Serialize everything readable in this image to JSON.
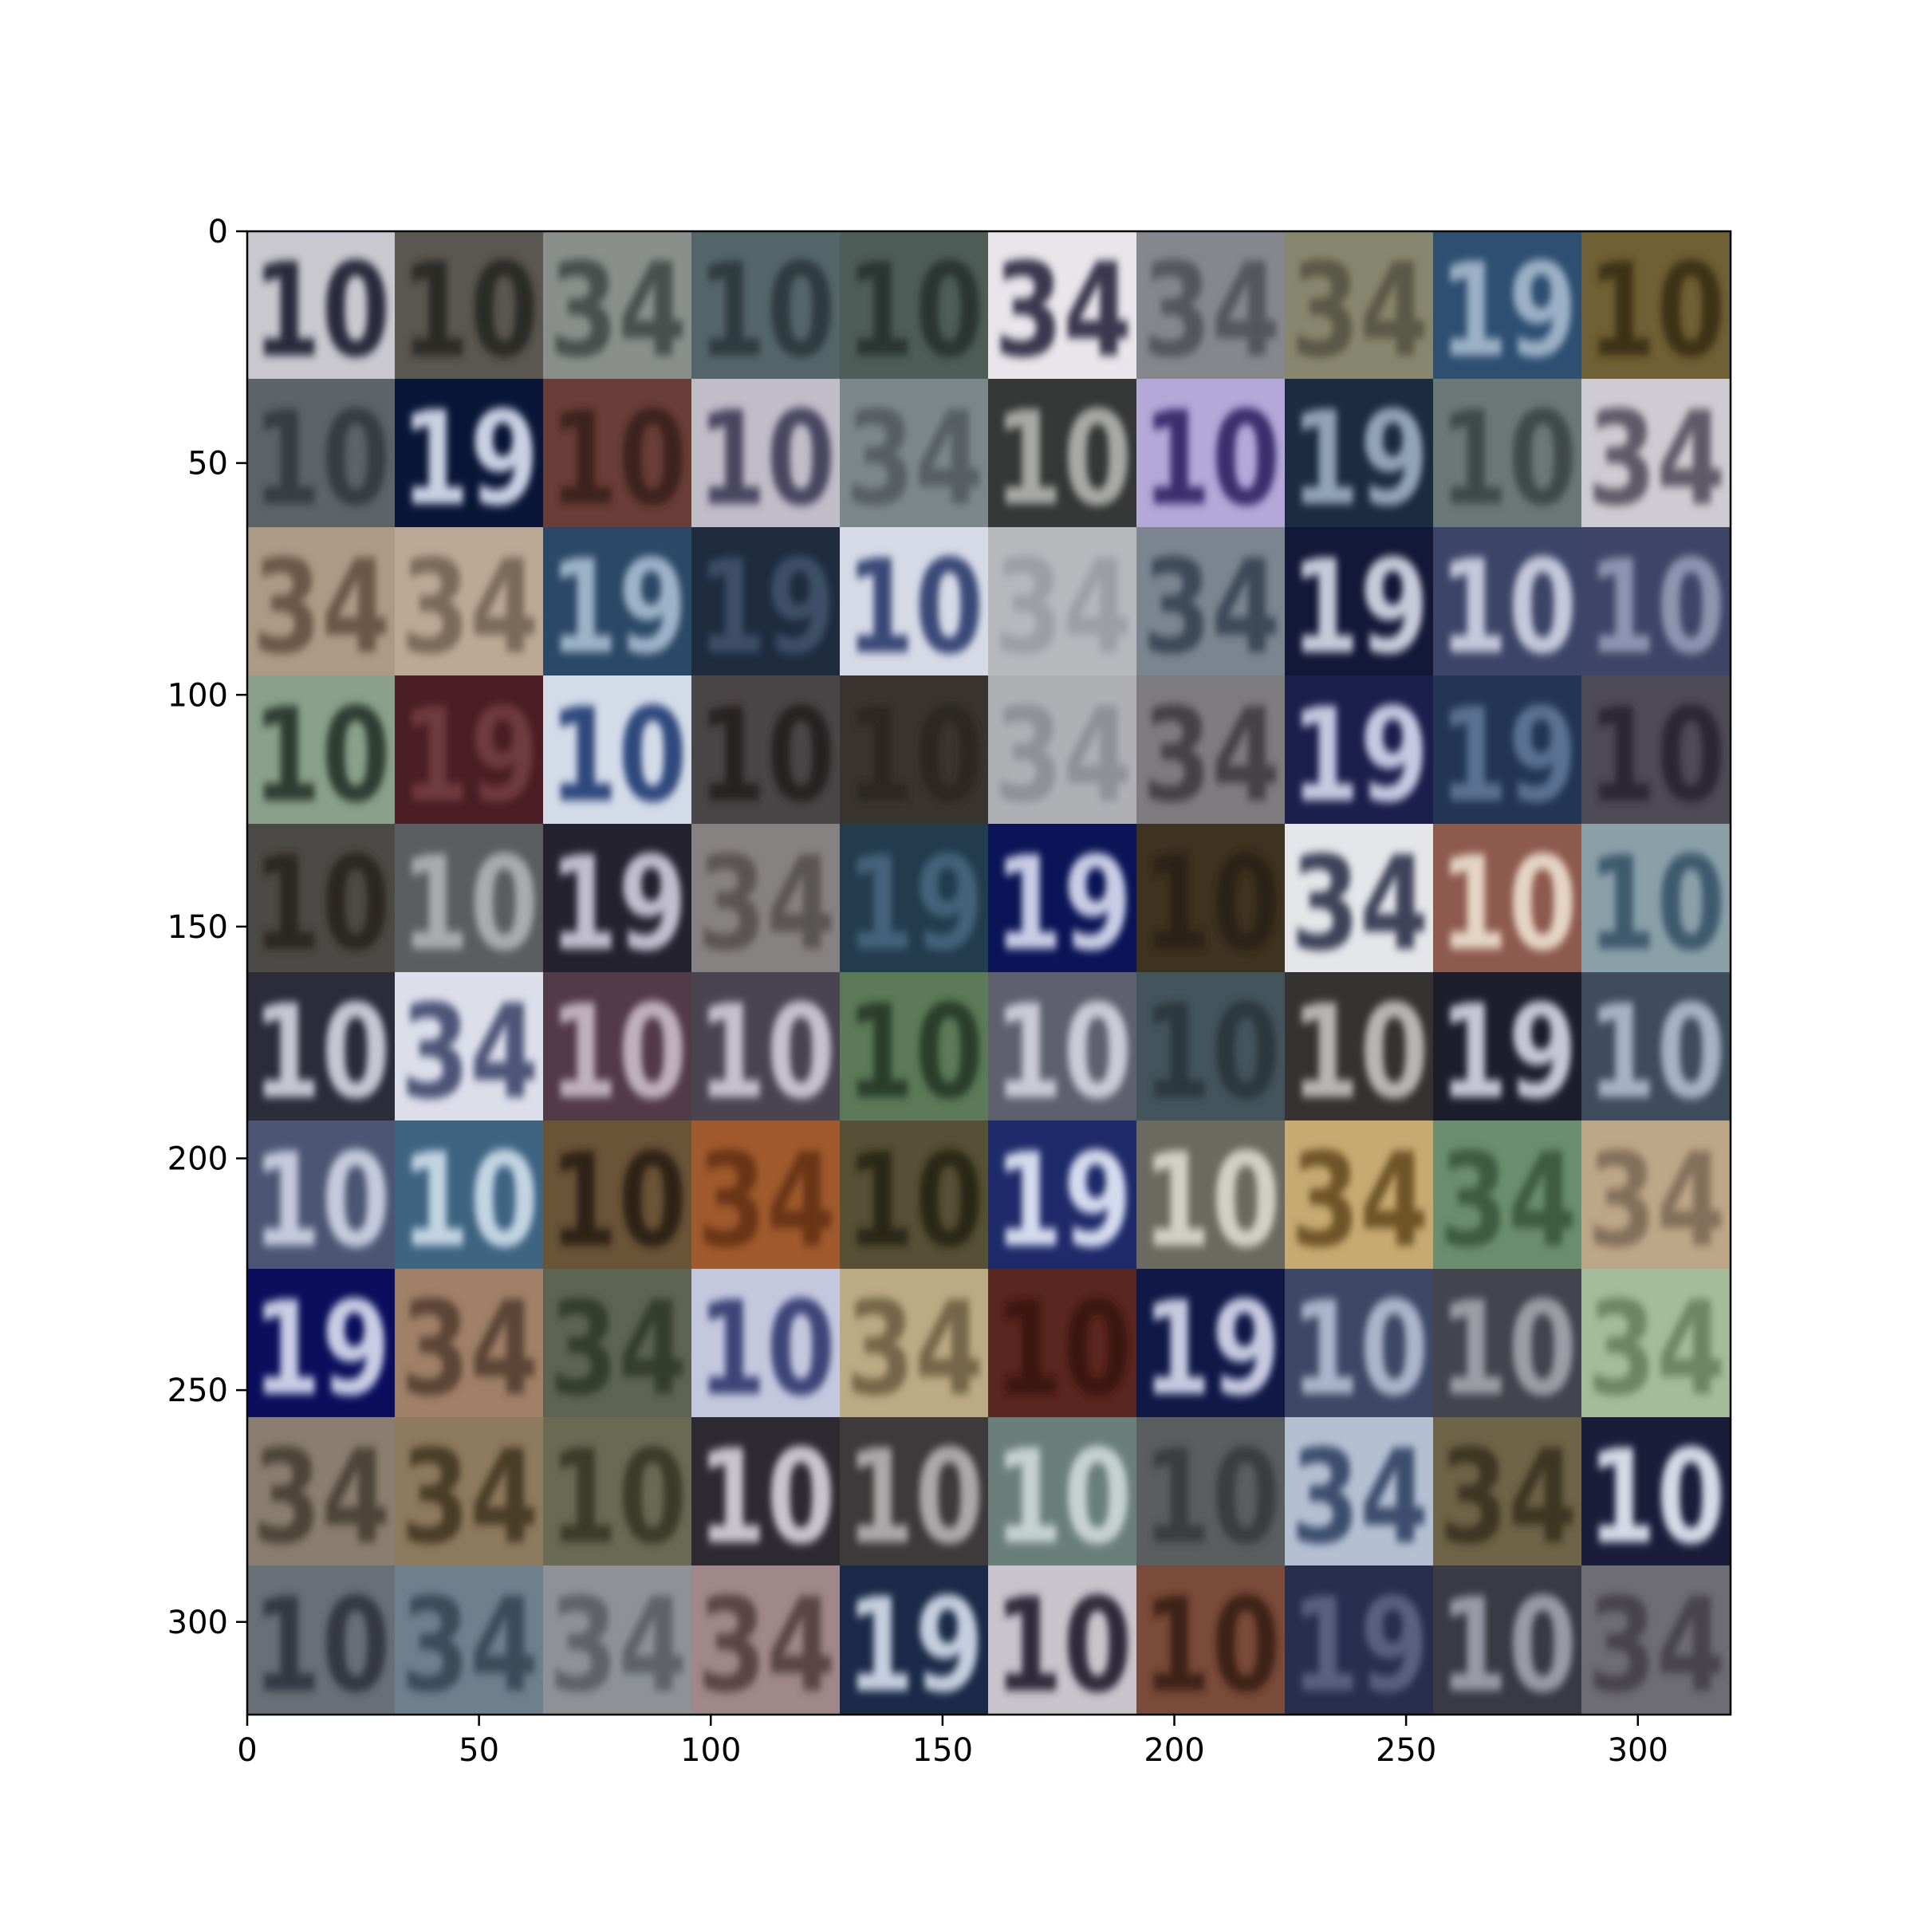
{
  "chart_data": {
    "type": "heatmap",
    "title": "",
    "xlabel": "",
    "ylabel": "",
    "xlim": [
      0,
      320
    ],
    "ylim": [
      320,
      0
    ],
    "x_ticks": [
      0,
      50,
      100,
      150,
      200,
      250,
      300
    ],
    "y_ticks": [
      0,
      50,
      100,
      150,
      200,
      250,
      300
    ],
    "x_tick_labels": [
      "0",
      "50",
      "100",
      "150",
      "200",
      "250",
      "300"
    ],
    "y_tick_labels": [
      "0",
      "50",
      "100",
      "150",
      "200",
      "250",
      "300"
    ],
    "grid": false,
    "tile_grid": {
      "rows": 10,
      "cols": 10,
      "tile_size": 32
    },
    "tiles": [
      [
        {
          "digits": "10",
          "bg": "#c9c8cf",
          "fg": "#2a2a3e"
        },
        {
          "digits": "10",
          "bg": "#5a5650",
          "fg": "#2c2a26"
        },
        {
          "digits": "34",
          "bg": "#8a8f8c",
          "fg": "#4a4f4e"
        },
        {
          "digits": "10",
          "bg": "#55666a",
          "fg": "#2f3b40"
        },
        {
          "digits": "10",
          "bg": "#4f5d58",
          "fg": "#2c3532"
        },
        {
          "digits": "34",
          "bg": "#e8e6ea",
          "fg": "#3a3850"
        },
        {
          "digits": "34",
          "bg": "#86878d",
          "fg": "#55565c"
        },
        {
          "digits": "34",
          "bg": "#87866e",
          "fg": "#5a5946"
        },
        {
          "digits": "19",
          "bg": "#2e4f72",
          "fg": "#9bb0c6"
        },
        {
          "digits": "10",
          "bg": "#6f6035",
          "fg": "#3c3319"
        }
      ],
      [
        {
          "digits": "10",
          "bg": "#5c6468",
          "fg": "#363c40"
        },
        {
          "digits": "19",
          "bg": "#0a1638",
          "fg": "#c8cfe2"
        },
        {
          "digits": "10",
          "bg": "#6a3e38",
          "fg": "#3c221e"
        },
        {
          "digits": "10",
          "bg": "#c0bcc8",
          "fg": "#4a4660"
        },
        {
          "digits": "34",
          "bg": "#7c878a",
          "fg": "#565f62"
        },
        {
          "digits": "10",
          "bg": "#363838",
          "fg": "#a7a8a6"
        },
        {
          "digits": "10",
          "bg": "#b3a8d8",
          "fg": "#3a2f6e"
        },
        {
          "digits": "19",
          "bg": "#1c2c40",
          "fg": "#90a3b8"
        },
        {
          "digits": "10",
          "bg": "#6c7878",
          "fg": "#3f4848"
        },
        {
          "digits": "34",
          "bg": "#cfcbd2",
          "fg": "#5e5a68"
        }
      ],
      [
        {
          "digits": "34",
          "bg": "#ad9a86",
          "fg": "#6a5846"
        },
        {
          "digits": "34",
          "bg": "#bba995",
          "fg": "#7a6a58"
        },
        {
          "digits": "19",
          "bg": "#2b4866",
          "fg": "#9cb2c8"
        },
        {
          "digits": "19",
          "bg": "#1e2c3e",
          "fg": "#3e5068"
        },
        {
          "digits": "10",
          "bg": "#d6dae6",
          "fg": "#3a4a78"
        },
        {
          "digits": "34",
          "bg": "#b6b8bc",
          "fg": "#9c9ea4"
        },
        {
          "digits": "34",
          "bg": "#7b8590",
          "fg": "#3e4a58"
        },
        {
          "digits": "19",
          "bg": "#141838",
          "fg": "#c6cad8"
        },
        {
          "digits": "10",
          "bg": "#3c4468",
          "fg": "#c4c8da"
        },
        {
          "digits": "10",
          "bg": "#3e4566",
          "fg": "#8e94b0"
        }
      ],
      [
        {
          "digits": "10",
          "bg": "#8aa08a",
          "fg": "#2f3e30"
        },
        {
          "digits": "19",
          "bg": "#4a1e24",
          "fg": "#6e3a40"
        },
        {
          "digits": "10",
          "bg": "#d4dbe8",
          "fg": "#2f4a7e"
        },
        {
          "digits": "10",
          "bg": "#4a4648",
          "fg": "#262224"
        },
        {
          "digits": "10",
          "bg": "#3a3430",
          "fg": "#2c2622"
        },
        {
          "digits": "34",
          "bg": "#aeb0b4",
          "fg": "#8e9096"
        },
        {
          "digits": "34",
          "bg": "#7e7c7e",
          "fg": "#444244"
        },
        {
          "digits": "19",
          "bg": "#1c1e4c",
          "fg": "#c4c8e0"
        },
        {
          "digits": "19",
          "bg": "#223654",
          "fg": "#5a7292"
        },
        {
          "digits": "10",
          "bg": "#4e4a56",
          "fg": "#2a2632"
        }
      ],
      [
        {
          "digits": "10",
          "bg": "#4c4a46",
          "fg": "#2a2824"
        },
        {
          "digits": "10",
          "bg": "#5a5e60",
          "fg": "#a8acae"
        },
        {
          "digits": "19",
          "bg": "#24222e",
          "fg": "#c0bece"
        },
        {
          "digits": "34",
          "bg": "#878282",
          "fg": "#5a5454"
        },
        {
          "digits": "19",
          "bg": "#223c4e",
          "fg": "#44627a"
        },
        {
          "digits": "19",
          "bg": "#0a1456",
          "fg": "#c8cce4"
        },
        {
          "digits": "10",
          "bg": "#3e3220",
          "fg": "#2a2014"
        },
        {
          "digits": "34",
          "bg": "#e4e6ea",
          "fg": "#40425a"
        },
        {
          "digits": "10",
          "bg": "#8e5a4e",
          "fg": "#e4d4c4"
        },
        {
          "digits": "10",
          "bg": "#8aa0a8",
          "fg": "#3e5a6e"
        }
      ],
      [
        {
          "digits": "10",
          "bg": "#2a2c3a",
          "fg": "#c4c6d2"
        },
        {
          "digits": "34",
          "bg": "#dcdeea",
          "fg": "#4e5478"
        },
        {
          "digits": "10",
          "bg": "#523a48",
          "fg": "#c0b0bc"
        },
        {
          "digits": "10",
          "bg": "#4a4450",
          "fg": "#c6c0cc"
        },
        {
          "digits": "10",
          "bg": "#5c7a58",
          "fg": "#2c3e2a"
        },
        {
          "digits": "10",
          "bg": "#5e606e",
          "fg": "#cacbd6"
        },
        {
          "digits": "10",
          "bg": "#44545c",
          "fg": "#2c383e"
        },
        {
          "digits": "10",
          "bg": "#363232",
          "fg": "#b8b4b4"
        },
        {
          "digits": "19",
          "bg": "#1c1e2c",
          "fg": "#c4c6d4"
        },
        {
          "digits": "10",
          "bg": "#3e4c5e",
          "fg": "#a6b2c2"
        }
      ],
      [
        {
          "digits": "10",
          "bg": "#4c5674",
          "fg": "#c4cadc"
        },
        {
          "digits": "10",
          "bg": "#3e6482",
          "fg": "#c2d4e2"
        },
        {
          "digits": "10",
          "bg": "#6a5438",
          "fg": "#2e2214"
        },
        {
          "digits": "34",
          "bg": "#a05a2e",
          "fg": "#6a3414"
        },
        {
          "digits": "10",
          "bg": "#565036",
          "fg": "#2a2616"
        },
        {
          "digits": "19",
          "bg": "#1e2a6a",
          "fg": "#d4daee"
        },
        {
          "digits": "10",
          "bg": "#6a6a60",
          "fg": "#d0d0c6"
        },
        {
          "digits": "34",
          "bg": "#c6aa72",
          "fg": "#6e5428"
        },
        {
          "digits": "34",
          "bg": "#6a8e6e",
          "fg": "#3c5c40"
        },
        {
          "digits": "34",
          "bg": "#bea688",
          "fg": "#84705a"
        }
      ],
      [
        {
          "digits": "19",
          "bg": "#0a0e5c",
          "fg": "#c8cce4"
        },
        {
          "digits": "34",
          "bg": "#a08068",
          "fg": "#5c4434"
        },
        {
          "digits": "34",
          "bg": "#5e6452",
          "fg": "#363c2c"
        },
        {
          "digits": "10",
          "bg": "#c4c8de",
          "fg": "#3c4478"
        },
        {
          "digits": "34",
          "bg": "#bcaa84",
          "fg": "#76664a"
        },
        {
          "digits": "10",
          "bg": "#5a2620",
          "fg": "#3a1610"
        },
        {
          "digits": "19",
          "bg": "#101848",
          "fg": "#c6cae0"
        },
        {
          "digits": "10",
          "bg": "#3c4866",
          "fg": "#aab4ca"
        },
        {
          "digits": "10",
          "bg": "#44444e",
          "fg": "#9c9ca6"
        },
        {
          "digits": "34",
          "bg": "#a4bc9a",
          "fg": "#6c8664"
        }
      ],
      [
        {
          "digits": "34",
          "bg": "#8a7e70",
          "fg": "#4e4438"
        },
        {
          "digits": "34",
          "bg": "#8e7a5e",
          "fg": "#4a3c28"
        },
        {
          "digits": "10",
          "bg": "#6a6a54",
          "fg": "#3a3a28"
        },
        {
          "digits": "10",
          "bg": "#2e2a32",
          "fg": "#c8c4cc"
        },
        {
          "digits": "10",
          "bg": "#3c3a3a",
          "fg": "#aaa8a8"
        },
        {
          "digits": "10",
          "bg": "#6a7e7a",
          "fg": "#c6d2d0"
        },
        {
          "digits": "10",
          "bg": "#5a5e5e",
          "fg": "#3a3e3e"
        },
        {
          "digits": "34",
          "bg": "#b4c0d2",
          "fg": "#3e4e6e"
        },
        {
          "digits": "34",
          "bg": "#6e6448",
          "fg": "#3e3622"
        },
        {
          "digits": "10",
          "bg": "#1a1c3a",
          "fg": "#d6d8e6"
        }
      ],
      [
        {
          "digits": "10",
          "bg": "#6a6e76",
          "fg": "#343842"
        },
        {
          "digits": "34",
          "bg": "#6e808e",
          "fg": "#3a4c5a"
        },
        {
          "digits": "34",
          "bg": "#8e9296",
          "fg": "#5e6268"
        },
        {
          "digits": "34",
          "bg": "#a08888",
          "fg": "#5a4444"
        },
        {
          "digits": "19",
          "bg": "#1a2a48",
          "fg": "#c4cede"
        },
        {
          "digits": "10",
          "bg": "#c8c4cc",
          "fg": "#2e2a3a"
        },
        {
          "digits": "10",
          "bg": "#7a4a3a",
          "fg": "#3e2218"
        },
        {
          "digits": "19",
          "bg": "#2a2e4e",
          "fg": "#5a6080"
        },
        {
          "digits": "10",
          "bg": "#3a3a44",
          "fg": "#9a9aa6"
        },
        {
          "digits": "34",
          "bg": "#6e6c74",
          "fg": "#46444c"
        }
      ]
    ]
  }
}
